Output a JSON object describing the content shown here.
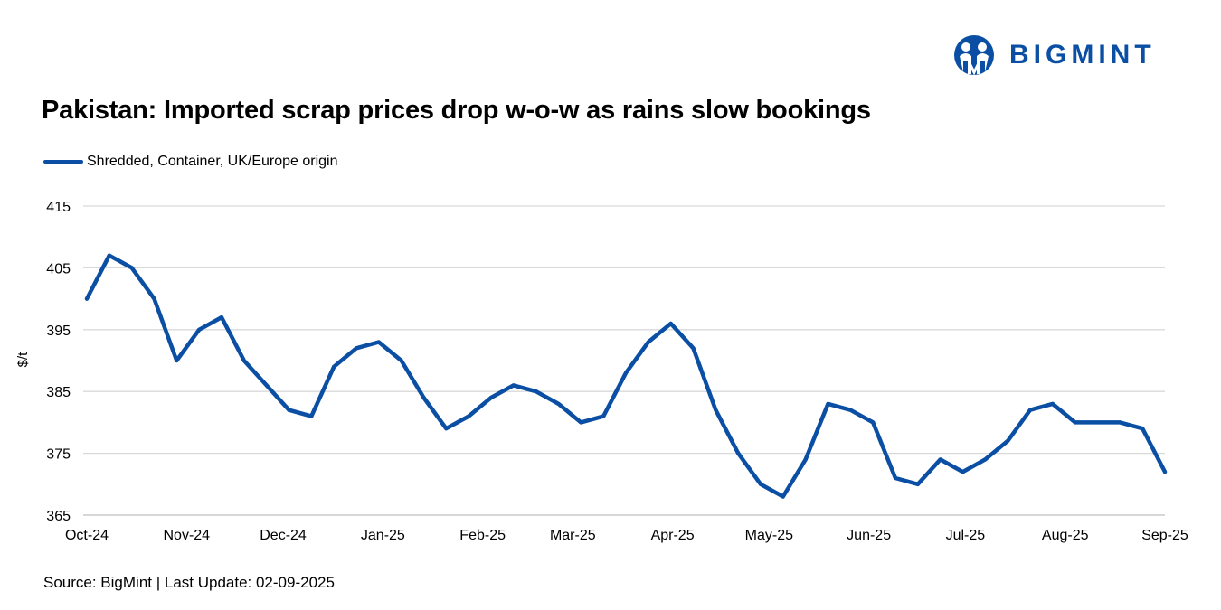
{
  "brand": {
    "name": "BIGMINT",
    "color": "#0a4fa3"
  },
  "footer": {
    "source": "Source: BigMint | Last Update: 02-09-2025"
  },
  "chart_data": {
    "type": "line",
    "title": "Pakistan: Imported scrap prices drop w-o-w as rains slow bookings",
    "xlabel": "",
    "ylabel": "$/t",
    "ylim": [
      365,
      415
    ],
    "yticks": [
      "365",
      "375",
      "385",
      "395",
      "405",
      "415"
    ],
    "xticks": [
      "Oct-24",
      "Nov-24",
      "Dec-24",
      "Jan-25",
      "Feb-25",
      "Mar-25",
      "Apr-25",
      "May-25",
      "Jun-25",
      "Jul-25",
      "Aug-25",
      "Sep-25"
    ],
    "grid": true,
    "legend": "top-left",
    "series": [
      {
        "name": "Shredded, Container, UK/Europe origin",
        "color": "#0a4fa3",
        "values": [
          400,
          407,
          405,
          400,
          390,
          395,
          397,
          390,
          386,
          382,
          381,
          389,
          392,
          393,
          390,
          384,
          379,
          381,
          384,
          386,
          385,
          383,
          380,
          381,
          388,
          393,
          396,
          392,
          382,
          375,
          370,
          368,
          374,
          383,
          382,
          380,
          371,
          370,
          374,
          372,
          374,
          377,
          382,
          383,
          380,
          380,
          380,
          379,
          372
        ]
      }
    ]
  }
}
